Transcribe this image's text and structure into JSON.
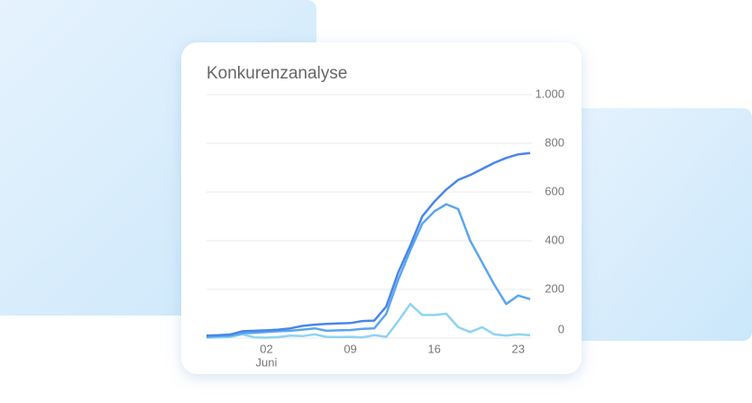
{
  "chart_data": {
    "type": "line",
    "title": "Konkurenzanalyse",
    "categories": [
      null,
      null,
      null,
      null,
      null,
      "02",
      null,
      null,
      null,
      null,
      null,
      null,
      "09",
      null,
      null,
      null,
      null,
      null,
      null,
      "16",
      null,
      null,
      null,
      null,
      null,
      null,
      "23",
      null
    ],
    "month_label": "Juni",
    "series": [
      {
        "color": "#4a86e8",
        "values": [
          10,
          12,
          15,
          28,
          30,
          32,
          35,
          40,
          50,
          55,
          58,
          60,
          62,
          70,
          72,
          130,
          270,
          380,
          500,
          560,
          610,
          650,
          670,
          695,
          720,
          740,
          755,
          760
        ]
      },
      {
        "color": "#5aa6ee",
        "values": [
          5,
          8,
          10,
          20,
          22,
          25,
          28,
          30,
          35,
          40,
          30,
          32,
          33,
          38,
          40,
          100,
          240,
          360,
          470,
          520,
          550,
          530,
          400,
          310,
          220,
          140,
          175,
          160
        ]
      },
      {
        "color": "#8fd3f2",
        "values": [
          2,
          3,
          5,
          15,
          3,
          2,
          4,
          10,
          8,
          15,
          5,
          4,
          5,
          3,
          12,
          5,
          70,
          140,
          95,
          95,
          100,
          45,
          25,
          45,
          15,
          10,
          15,
          12
        ]
      }
    ],
    "ylim": [
      0,
      1000
    ],
    "yticks": [
      0,
      200,
      400,
      600,
      800,
      {
        "value": 1000,
        "label": "1.000"
      }
    ],
    "grid": true
  }
}
